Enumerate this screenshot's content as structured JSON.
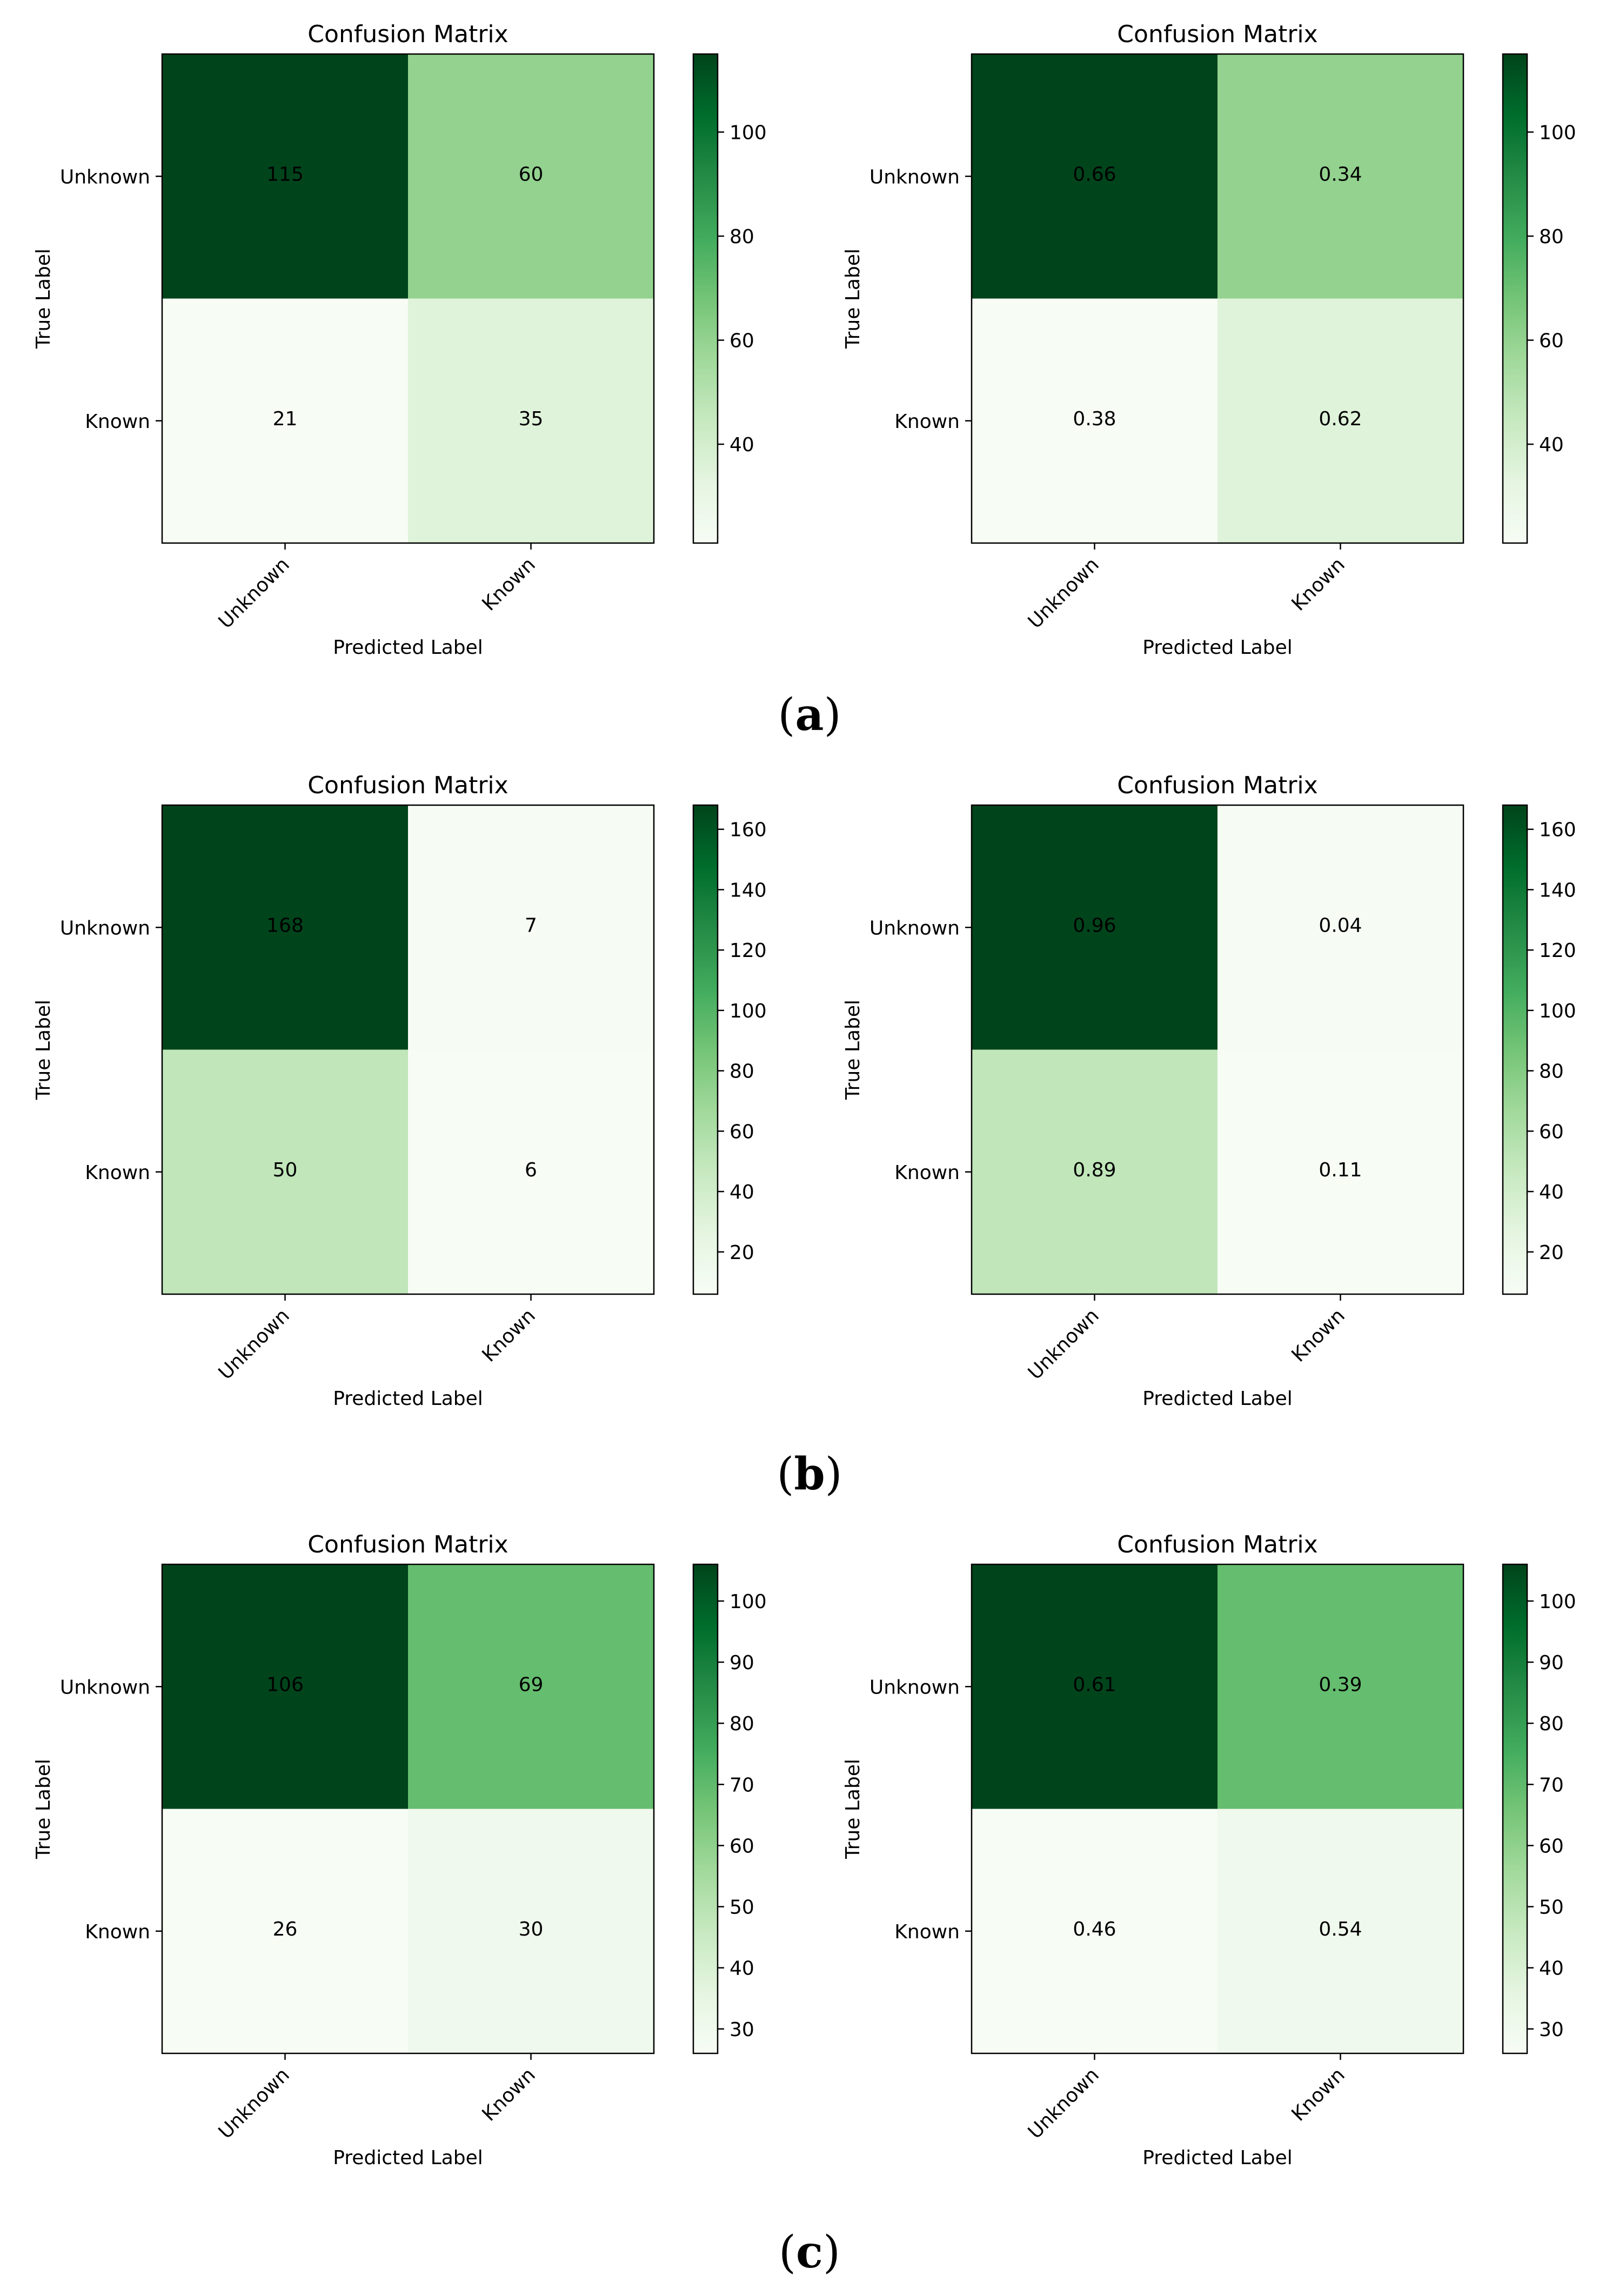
{
  "chart_data": [
    {
      "type": "heatmap",
      "panel": "a",
      "title": "Confusion Matrix",
      "xlabel": "Predicted Label",
      "ylabel": "True Label",
      "x_categories": [
        "Unknown",
        "Known"
      ],
      "y_categories": [
        "Unknown",
        "Known"
      ],
      "color_values": [
        [
          115,
          60
        ],
        [
          21,
          35
        ]
      ],
      "cell_labels": [
        [
          "115",
          "60"
        ],
        [
          "21",
          "35"
        ]
      ],
      "clim": [
        21,
        115
      ],
      "colorbar_ticks": [
        40,
        60,
        80,
        100
      ]
    },
    {
      "type": "heatmap",
      "panel": "a",
      "title": "Confusion Matrix",
      "xlabel": "Predicted Label",
      "ylabel": "True Label",
      "x_categories": [
        "Unknown",
        "Known"
      ],
      "y_categories": [
        "Unknown",
        "Known"
      ],
      "color_values": [
        [
          115,
          60
        ],
        [
          21,
          35
        ]
      ],
      "cell_labels": [
        [
          "0.66",
          "0.34"
        ],
        [
          "0.38",
          "0.62"
        ]
      ],
      "clim": [
        21,
        115
      ],
      "colorbar_ticks": [
        40,
        60,
        80,
        100
      ]
    },
    {
      "type": "heatmap",
      "panel": "b",
      "title": "Confusion Matrix",
      "xlabel": "Predicted Label",
      "ylabel": "True Label",
      "x_categories": [
        "Unknown",
        "Known"
      ],
      "y_categories": [
        "Unknown",
        "Known"
      ],
      "color_values": [
        [
          168,
          7
        ],
        [
          50,
          6
        ]
      ],
      "cell_labels": [
        [
          "168",
          "7"
        ],
        [
          "50",
          "6"
        ]
      ],
      "clim": [
        6,
        168
      ],
      "colorbar_ticks": [
        20,
        40,
        60,
        80,
        100,
        120,
        140,
        160
      ]
    },
    {
      "type": "heatmap",
      "panel": "b",
      "title": "Confusion Matrix",
      "xlabel": "Predicted Label",
      "ylabel": "True Label",
      "x_categories": [
        "Unknown",
        "Known"
      ],
      "y_categories": [
        "Unknown",
        "Known"
      ],
      "color_values": [
        [
          168,
          7
        ],
        [
          50,
          6
        ]
      ],
      "cell_labels": [
        [
          "0.96",
          "0.04"
        ],
        [
          "0.89",
          "0.11"
        ]
      ],
      "clim": [
        6,
        168
      ],
      "colorbar_ticks": [
        20,
        40,
        60,
        80,
        100,
        120,
        140,
        160
      ]
    },
    {
      "type": "heatmap",
      "panel": "c",
      "title": "Confusion Matrix",
      "xlabel": "Predicted Label",
      "ylabel": "True Label",
      "x_categories": [
        "Unknown",
        "Known"
      ],
      "y_categories": [
        "Unknown",
        "Known"
      ],
      "color_values": [
        [
          106,
          69
        ],
        [
          26,
          30
        ]
      ],
      "cell_labels": [
        [
          "106",
          "69"
        ],
        [
          "26",
          "30"
        ]
      ],
      "clim": [
        26,
        106
      ],
      "colorbar_ticks": [
        30,
        40,
        50,
        60,
        70,
        80,
        90,
        100
      ]
    },
    {
      "type": "heatmap",
      "panel": "c",
      "title": "Confusion Matrix",
      "xlabel": "Predicted Label",
      "ylabel": "True Label",
      "x_categories": [
        "Unknown",
        "Known"
      ],
      "y_categories": [
        "Unknown",
        "Known"
      ],
      "color_values": [
        [
          106,
          69
        ],
        [
          26,
          30
        ]
      ],
      "cell_labels": [
        [
          "0.61",
          "0.39"
        ],
        [
          "0.46",
          "0.54"
        ]
      ],
      "clim": [
        26,
        106
      ],
      "colorbar_ticks": [
        30,
        40,
        50,
        60,
        70,
        80,
        90,
        100
      ]
    }
  ],
  "panel_labels": [
    {
      "open": "(",
      "letter": "a",
      "close": ")"
    },
    {
      "open": "(",
      "letter": "b",
      "close": ")"
    },
    {
      "open": "(",
      "letter": "c",
      "close": ")"
    }
  ],
  "colormap": [
    "#f7fcf5",
    "#e5f5e0",
    "#c7e9c0",
    "#a1d99b",
    "#74c476",
    "#41ab5d",
    "#238b45",
    "#006d2c",
    "#00441b"
  ]
}
